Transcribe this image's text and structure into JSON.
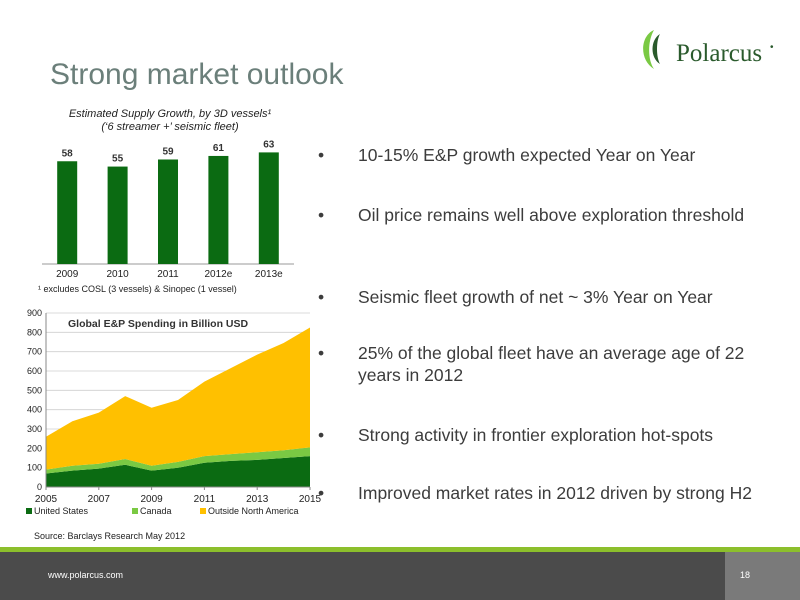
{
  "slide": {
    "title": "Strong market outlook",
    "brand": "Polarcus",
    "brand_mark": "•",
    "source": "Source: Barclays Research May 2012",
    "url": "www.polarcus.com",
    "page_number": "18"
  },
  "bullets": [
    {
      "marker": "•",
      "text": "10-15% E&P growth expected Year on Year"
    },
    {
      "marker": "•",
      "text": "Oil price remains well above exploration threshold"
    },
    {
      "marker": "•",
      "text": "Seismic fleet growth of net ~ 3% Year on Year"
    },
    {
      "marker": "•",
      "text": "25% of the global fleet have an average age of 22 years in 2012"
    },
    {
      "marker": "•",
      "text": "Strong activity in frontier exploration hot-spots"
    },
    {
      "marker": "•",
      "text": "Improved market rates in 2012 driven by strong H2"
    }
  ],
  "colors": {
    "title": "#6b7f7a",
    "dark_green": "#0b6b12",
    "light_green": "#7ac943",
    "gold": "#ffc000",
    "footer_accent": "#8cbf2c",
    "footer_bg": "#4b4b4b"
  },
  "chart_data": [
    {
      "type": "bar",
      "title": "Estimated Supply Growth, by 3D vessels¹",
      "subtitle": "(‘6 streamer +’ seismic fleet)",
      "footnote": "¹ excludes COSL (3 vessels) & Sinopec (1 vessel)",
      "categories": [
        "2009",
        "2010",
        "2011",
        "2012e",
        "2013e"
      ],
      "values": [
        58,
        55,
        59,
        61,
        63
      ],
      "ylim": [
        0,
        70
      ],
      "grid": false,
      "color": "#0b6b12"
    },
    {
      "type": "area",
      "stacked": true,
      "title": "Global E&P Spending in Billion USD",
      "x": [
        2005,
        2006,
        2007,
        2008,
        2009,
        2010,
        2011,
        2012,
        2013,
        2014,
        2015
      ],
      "x_ticks": [
        "2005",
        "2007",
        "2009",
        "2011",
        "2013",
        "2015"
      ],
      "y_ticks": [
        "0",
        "100",
        "200",
        "300",
        "400",
        "500",
        "600",
        "700",
        "800",
        "900"
      ],
      "ylim": [
        0,
        900
      ],
      "grid": true,
      "legend": "bottom",
      "series": [
        {
          "name": "United States",
          "color": "#0b6b12",
          "values": [
            70,
            85,
            95,
            115,
            85,
            100,
            125,
            135,
            140,
            150,
            160
          ]
        },
        {
          "name": "Canada",
          "color": "#7ac943",
          "values": [
            20,
            25,
            25,
            30,
            25,
            30,
            35,
            35,
            40,
            40,
            45
          ]
        },
        {
          "name": "Outside North America",
          "color": "#ffc000",
          "values": [
            170,
            230,
            265,
            325,
            300,
            320,
            385,
            445,
            505,
            555,
            620
          ]
        }
      ]
    }
  ]
}
